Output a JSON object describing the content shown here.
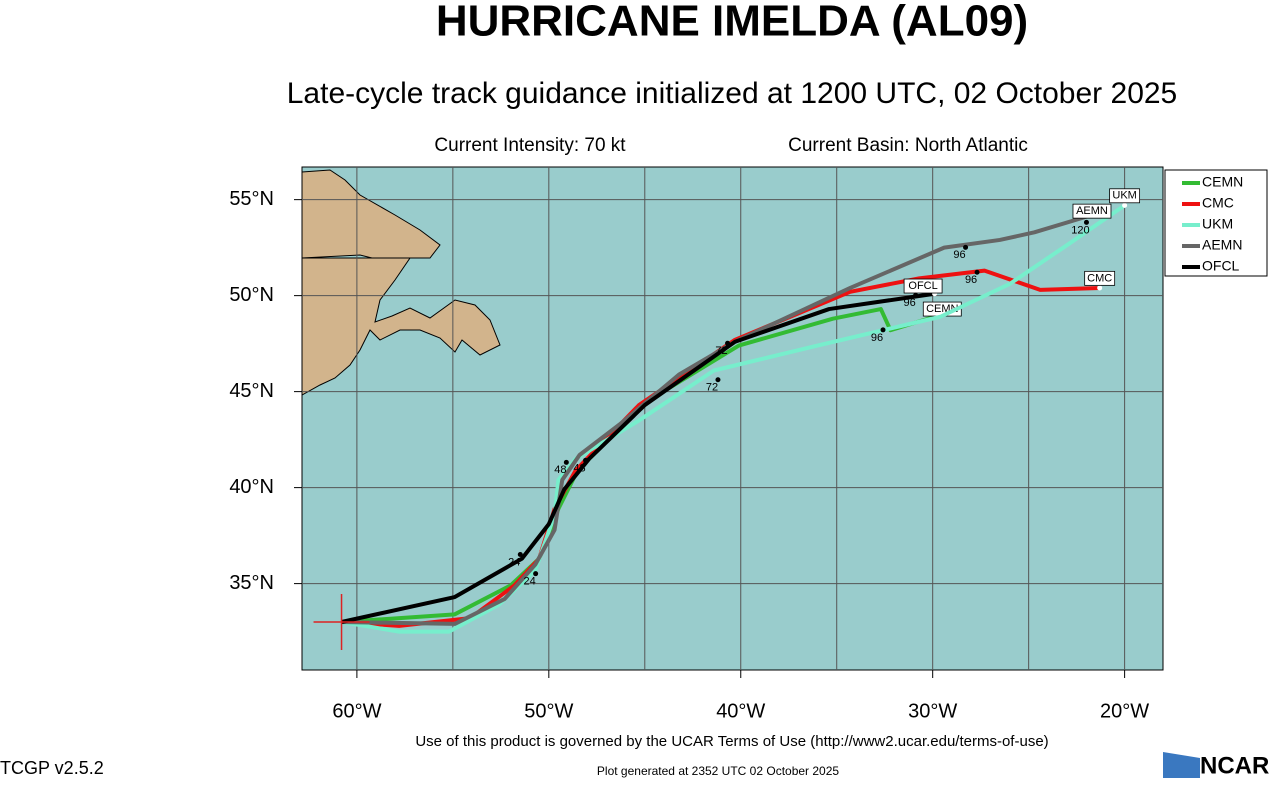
{
  "chart_data": {
    "type": "track_map",
    "title": "HURRICANE IMELDA (AL09)",
    "subtitle": "Late-cycle track guidance initialized at 1200 UTC, 02 October 2025",
    "intensity": "Current Intensity: 70 kt",
    "basin": "Current Basin: North Atlantic",
    "terms": "Use of this product is governed by the UCAR Terms of Use (http://www2.ucar.edu/terms-of-use)",
    "version": "TCGP v2.5.2",
    "generated": "Plot generated at 2352 UTC   02 October 2025",
    "logo": "NCAR",
    "xlim": [
      -62.86,
      -18.0
    ],
    "ylim": [
      30.5,
      56.7
    ],
    "xticks": [
      {
        "value": -60,
        "label": "60°W"
      },
      {
        "value": -50,
        "label": "50°W"
      },
      {
        "value": -40,
        "label": "40°W"
      },
      {
        "value": -30,
        "label": "30°W"
      },
      {
        "value": -20,
        "label": "20°W"
      }
    ],
    "yticks": [
      {
        "value": 35,
        "label": "35°N"
      },
      {
        "value": 40,
        "label": "40°N"
      },
      {
        "value": 45,
        "label": "45°N"
      },
      {
        "value": 50,
        "label": "50°N"
      },
      {
        "value": 55,
        "label": "55°N"
      }
    ],
    "xgrid": [
      -60,
      -55,
      -50,
      -45,
      -40,
      -35,
      -30,
      -25,
      -20
    ],
    "grid": true,
    "storm_position": [
      -60.8,
      33.0
    ],
    "series": [
      {
        "name": "CEMN",
        "color": "#33bb33",
        "x": [
          -60.8,
          -54.9,
          -52.0,
          -50.5,
          -49.5,
          -48.5,
          -46.6,
          -44.7,
          -40.1,
          -35.2,
          -32.7,
          -32.2,
          -29.9
        ],
        "y": [
          33.0,
          33.4,
          34.9,
          36.3,
          38.9,
          40.9,
          42.8,
          44.6,
          47.4,
          48.8,
          49.3,
          48.2,
          48.9
        ],
        "label_x": -29.5,
        "label_y": 49.3
      },
      {
        "name": "CMC",
        "color": "#ee1111",
        "x": [
          -60.8,
          -57.8,
          -54.1,
          -51.8,
          -50.5,
          -49.7,
          -48.6,
          -45.3,
          -40.3,
          -34.3,
          -30.7,
          -27.3,
          -24.4,
          -21.3
        ],
        "y": [
          33.0,
          32.8,
          33.2,
          34.9,
          36.3,
          38.9,
          40.9,
          44.3,
          47.7,
          50.2,
          50.9,
          51.3,
          50.3,
          50.4
        ],
        "label_x": -21.3,
        "label_y": 50.9
      },
      {
        "name": "UKM",
        "color": "#77eecc",
        "x": [
          -60.8,
          -57.8,
          -55.2,
          -52.6,
          -50.7,
          -49.7,
          -49.5,
          -48.6,
          -45.3,
          -41.4,
          -36.0,
          -29.6,
          -26.0,
          -22.9,
          -20.0
        ],
        "y": [
          33.0,
          32.5,
          32.5,
          33.9,
          35.7,
          38.6,
          40.4,
          41.5,
          43.5,
          46.1,
          47.4,
          48.9,
          50.6,
          52.7,
          54.7
        ],
        "label_x": -20.0,
        "label_y": 55.2
      },
      {
        "name": "AEMN",
        "color": "#666666",
        "x": [
          -60.8,
          -54.9,
          -52.3,
          -50.7,
          -49.7,
          -49.3,
          -48.4,
          -46.3,
          -43.2,
          -40.3,
          -34.3,
          -29.4,
          -26.5,
          -24.7,
          -21.7
        ],
        "y": [
          33.0,
          32.9,
          34.2,
          36.0,
          37.8,
          40.4,
          41.7,
          43.3,
          45.9,
          47.6,
          50.4,
          52.5,
          52.9,
          53.3,
          54.2
        ],
        "label_x": -21.7,
        "label_y": 54.4
      },
      {
        "name": "OFCL",
        "color": "#000000",
        "x": [
          -60.8,
          -54.9,
          -51.4,
          -50.0,
          -49.2,
          -47.9,
          -45.0,
          -40.3,
          -35.4,
          -29.9
        ],
        "y": [
          33.0,
          34.3,
          36.3,
          38.1,
          39.9,
          41.5,
          44.3,
          47.6,
          49.3,
          50.1
        ],
        "label_x": -30.5,
        "label_y": 50.5
      }
    ],
    "annotations": [
      {
        "text": "120",
        "x": -22.3,
        "y": 53.4
      },
      {
        "text": "96",
        "x": -28.6,
        "y": 52.1
      },
      {
        "text": "96",
        "x": -28.0,
        "y": 50.8
      },
      {
        "text": "96",
        "x": -31.2,
        "y": 49.6
      },
      {
        "text": "96",
        "x": -32.9,
        "y": 47.8
      },
      {
        "text": "72",
        "x": -41.5,
        "y": 45.2
      },
      {
        "text": "72",
        "x": -41.0,
        "y": 47.1
      },
      {
        "text": "48",
        "x": -48.4,
        "y": 41.0
      },
      {
        "text": "48",
        "x": -49.4,
        "y": 40.9
      },
      {
        "text": "24",
        "x": -51.0,
        "y": 35.1
      },
      {
        "text": "24",
        "x": -51.8,
        "y": 36.1
      }
    ]
  }
}
